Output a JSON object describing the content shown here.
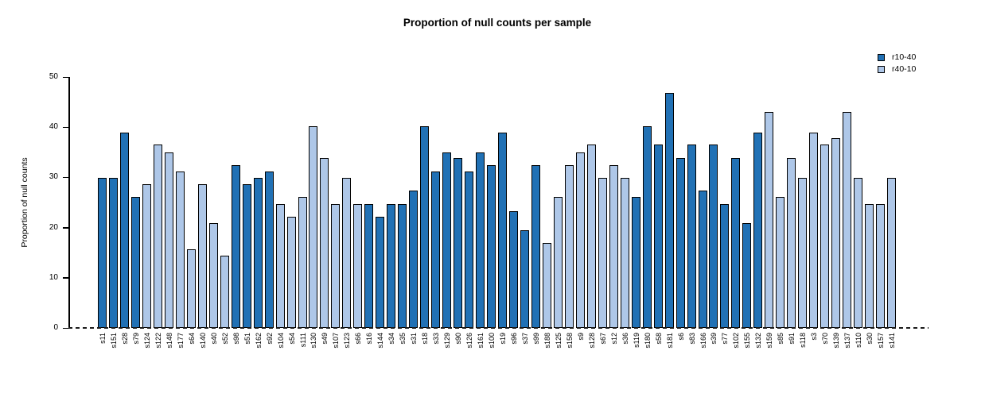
{
  "chart_data": {
    "type": "bar",
    "title": "Proportion of null counts per sample",
    "xlabel": "",
    "ylabel": "Proportion of null counts",
    "ylim": [
      0,
      50
    ],
    "yticks": [
      0,
      10,
      20,
      30,
      40,
      50
    ],
    "grid": false,
    "legend_position": "top-right",
    "baseline": "dashed black line at y=0",
    "series": [
      {
        "name": "r10-40",
        "color": "#2171b5"
      },
      {
        "name": "r40-10",
        "color": "#aec7e8"
      }
    ],
    "bars": [
      {
        "label": "s11",
        "value": 29.9,
        "series": "r10-40"
      },
      {
        "label": "s151",
        "value": 29.9,
        "series": "r10-40"
      },
      {
        "label": "s28",
        "value": 39.0,
        "series": "r10-40"
      },
      {
        "label": "s79",
        "value": 26.1,
        "series": "r10-40"
      },
      {
        "label": "s124",
        "value": 28.6,
        "series": "r40-10"
      },
      {
        "label": "s122",
        "value": 36.5,
        "series": "r40-10"
      },
      {
        "label": "s148",
        "value": 35.0,
        "series": "r40-10"
      },
      {
        "label": "s177",
        "value": 31.2,
        "series": "r40-10"
      },
      {
        "label": "s64",
        "value": 15.7,
        "series": "r40-10"
      },
      {
        "label": "s140",
        "value": 28.6,
        "series": "r40-10"
      },
      {
        "label": "s40",
        "value": 20.9,
        "series": "r40-10"
      },
      {
        "label": "s52",
        "value": 14.4,
        "series": "r40-10"
      },
      {
        "label": "s98",
        "value": 32.5,
        "series": "r10-40"
      },
      {
        "label": "s51",
        "value": 28.6,
        "series": "r10-40"
      },
      {
        "label": "s162",
        "value": 29.9,
        "series": "r10-40"
      },
      {
        "label": "s92",
        "value": 31.2,
        "series": "r10-40"
      },
      {
        "label": "s104",
        "value": 24.7,
        "series": "r40-10"
      },
      {
        "label": "s54",
        "value": 22.2,
        "series": "r40-10"
      },
      {
        "label": "s111",
        "value": 26.1,
        "series": "r40-10"
      },
      {
        "label": "s130",
        "value": 40.2,
        "series": "r40-10"
      },
      {
        "label": "s49",
        "value": 33.8,
        "series": "r40-10"
      },
      {
        "label": "s107",
        "value": 24.7,
        "series": "r40-10"
      },
      {
        "label": "s123",
        "value": 29.9,
        "series": "r40-10"
      },
      {
        "label": "s66",
        "value": 24.7,
        "series": "r40-10"
      },
      {
        "label": "s16",
        "value": 24.7,
        "series": "r10-40"
      },
      {
        "label": "s144",
        "value": 22.2,
        "series": "r10-40"
      },
      {
        "label": "s34",
        "value": 24.7,
        "series": "r10-40"
      },
      {
        "label": "s35",
        "value": 24.7,
        "series": "r10-40"
      },
      {
        "label": "s31",
        "value": 27.4,
        "series": "r10-40"
      },
      {
        "label": "s18",
        "value": 40.2,
        "series": "r10-40"
      },
      {
        "label": "s33",
        "value": 31.2,
        "series": "r10-40"
      },
      {
        "label": "s129",
        "value": 35.0,
        "series": "r10-40"
      },
      {
        "label": "s90",
        "value": 33.8,
        "series": "r10-40"
      },
      {
        "label": "s126",
        "value": 31.2,
        "series": "r10-40"
      },
      {
        "label": "s161",
        "value": 35.0,
        "series": "r10-40"
      },
      {
        "label": "s100",
        "value": 32.5,
        "series": "r10-40"
      },
      {
        "label": "s19",
        "value": 39.0,
        "series": "r10-40"
      },
      {
        "label": "s96",
        "value": 23.3,
        "series": "r10-40"
      },
      {
        "label": "s37",
        "value": 19.5,
        "series": "r10-40"
      },
      {
        "label": "s99",
        "value": 32.5,
        "series": "r10-40"
      },
      {
        "label": "s188",
        "value": 16.9,
        "series": "r40-10"
      },
      {
        "label": "s125",
        "value": 26.1,
        "series": "r40-10"
      },
      {
        "label": "s158",
        "value": 32.5,
        "series": "r40-10"
      },
      {
        "label": "s9",
        "value": 35.0,
        "series": "r40-10"
      },
      {
        "label": "s128",
        "value": 36.5,
        "series": "r40-10"
      },
      {
        "label": "s67",
        "value": 29.9,
        "series": "r40-10"
      },
      {
        "label": "s12",
        "value": 32.5,
        "series": "r40-10"
      },
      {
        "label": "s36",
        "value": 29.9,
        "series": "r40-10"
      },
      {
        "label": "s119",
        "value": 26.1,
        "series": "r10-40"
      },
      {
        "label": "s180",
        "value": 40.2,
        "series": "r10-40"
      },
      {
        "label": "s58",
        "value": 36.5,
        "series": "r10-40"
      },
      {
        "label": "s181",
        "value": 46.8,
        "series": "r10-40"
      },
      {
        "label": "s6",
        "value": 33.8,
        "series": "r10-40"
      },
      {
        "label": "s83",
        "value": 36.5,
        "series": "r10-40"
      },
      {
        "label": "s166",
        "value": 27.4,
        "series": "r10-40"
      },
      {
        "label": "s39",
        "value": 36.5,
        "series": "r10-40"
      },
      {
        "label": "s77",
        "value": 24.7,
        "series": "r10-40"
      },
      {
        "label": "s102",
        "value": 33.8,
        "series": "r10-40"
      },
      {
        "label": "s155",
        "value": 20.9,
        "series": "r10-40"
      },
      {
        "label": "s132",
        "value": 39.0,
        "series": "r10-40"
      },
      {
        "label": "s159",
        "value": 43.0,
        "series": "r40-10"
      },
      {
        "label": "s85",
        "value": 26.1,
        "series": "r40-10"
      },
      {
        "label": "s91",
        "value": 33.8,
        "series": "r40-10"
      },
      {
        "label": "s118",
        "value": 29.9,
        "series": "r40-10"
      },
      {
        "label": "s3",
        "value": 39.0,
        "series": "r40-10"
      },
      {
        "label": "s70",
        "value": 36.5,
        "series": "r40-10"
      },
      {
        "label": "s139",
        "value": 37.8,
        "series": "r40-10"
      },
      {
        "label": "s137",
        "value": 43.0,
        "series": "r40-10"
      },
      {
        "label": "s110",
        "value": 29.9,
        "series": "r40-10"
      },
      {
        "label": "s30",
        "value": 24.7,
        "series": "r40-10"
      },
      {
        "label": "s157",
        "value": 24.7,
        "series": "r40-10"
      },
      {
        "label": "s141",
        "value": 29.9,
        "series": "r40-10"
      }
    ]
  }
}
